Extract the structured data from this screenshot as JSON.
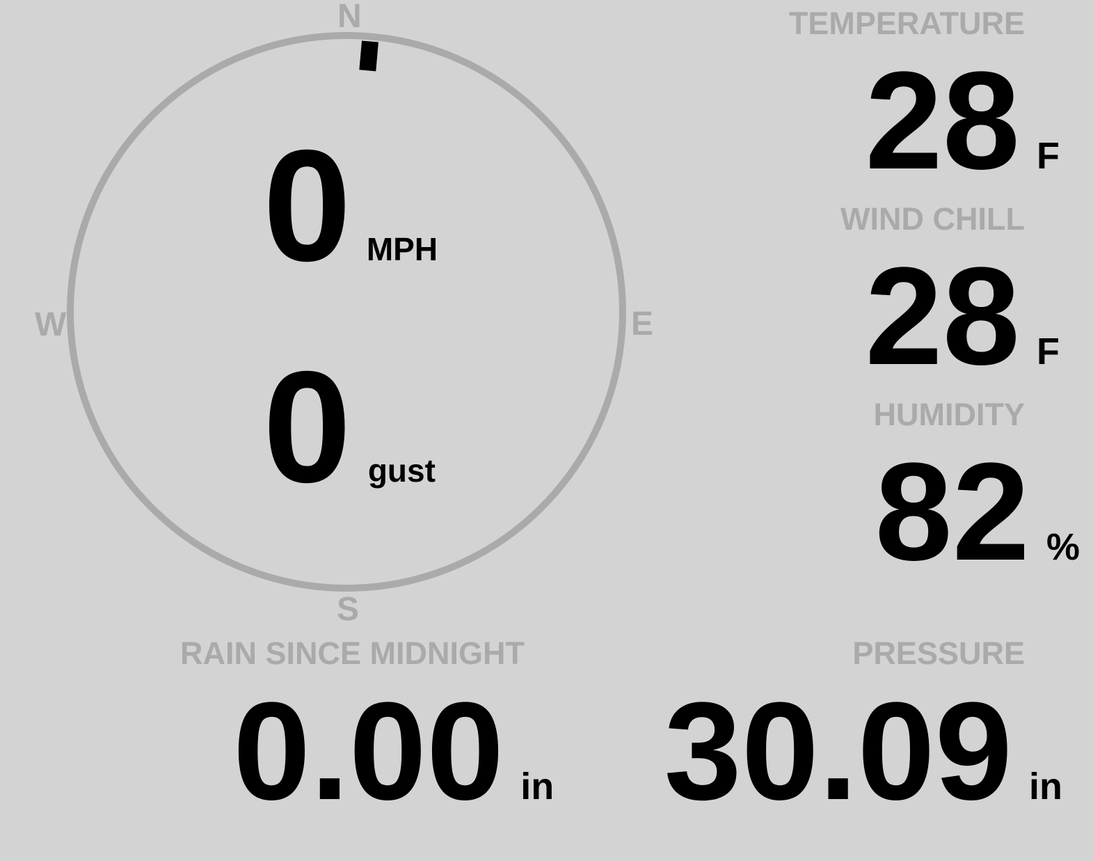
{
  "compass": {
    "north": "N",
    "south": "S",
    "east": "E",
    "west": "W",
    "direction_degrees": 5
  },
  "wind": {
    "speed": "0",
    "speed_unit": "MPH",
    "gust": "0",
    "gust_unit": "gust"
  },
  "temperature": {
    "label": "TEMPERATURE",
    "value": "28",
    "unit": "F"
  },
  "wind_chill": {
    "label": "WIND CHILL",
    "value": "28",
    "unit": "F"
  },
  "humidity": {
    "label": "HUMIDITY",
    "value": "82",
    "unit": "%"
  },
  "rain": {
    "label": "RAIN SINCE MIDNIGHT",
    "value": "0.00",
    "unit": "in"
  },
  "pressure": {
    "label": "PRESSURE",
    "value": "30.09",
    "unit": "in"
  },
  "colors": {
    "background": "#d3d3d3",
    "muted": "#aaaaaa",
    "value": "#000000"
  }
}
